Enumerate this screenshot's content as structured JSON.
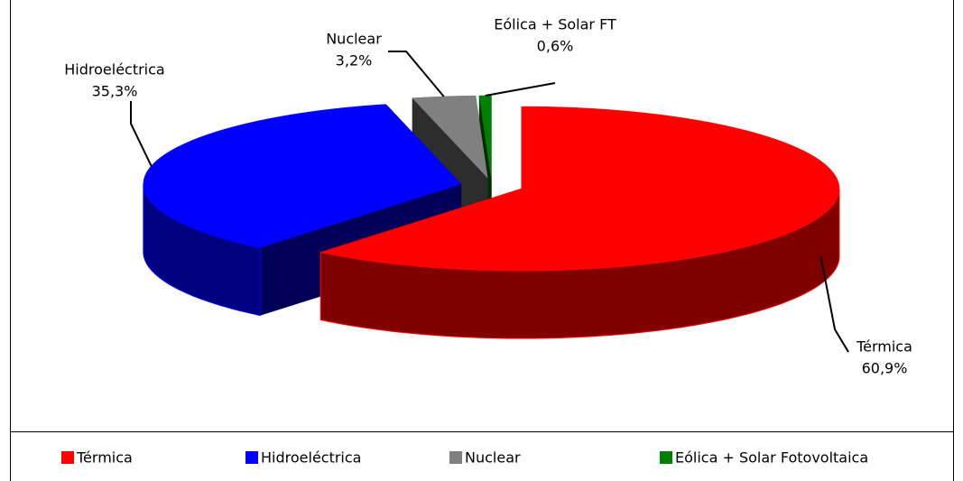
{
  "chart_data": {
    "type": "pie",
    "three_d": true,
    "exploded": true,
    "categories": [
      "Térmica",
      "Hidroeléctrica",
      "Nuclear",
      "Eólica + Solar Fotovoltaica"
    ],
    "label_names": [
      "Térmica",
      "Hidroeléctrica",
      "Nuclear",
      "Eólica + Solar FT"
    ],
    "values": [
      60.9,
      35.3,
      3.2,
      0.6
    ],
    "value_labels": [
      "60,9%",
      "35,3%",
      "3,2%",
      "0,6%"
    ],
    "colors": [
      "#ff0000",
      "#0000ff",
      "#808080",
      "#008000"
    ],
    "legend": "bottom"
  }
}
